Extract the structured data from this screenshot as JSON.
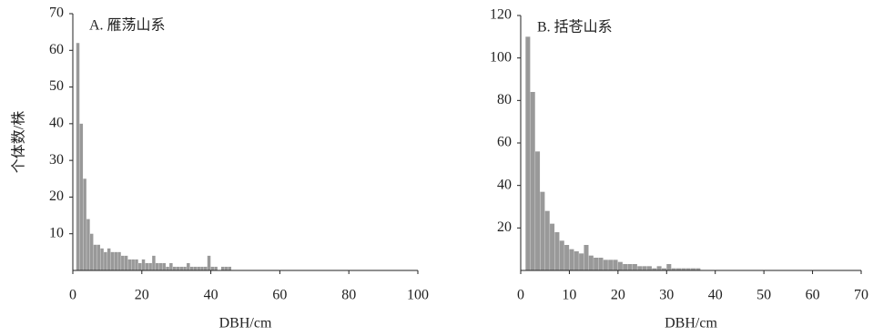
{
  "chart_data": [
    {
      "type": "histogram",
      "title": "A. 雁荡山系",
      "xlabel": "DBH/cm",
      "ylabel": "个体数/株",
      "color": "#999999",
      "bins": [
        1,
        2,
        3,
        4,
        5,
        6,
        7,
        8,
        9,
        10,
        11,
        12,
        13,
        14,
        15,
        16,
        17,
        18,
        19,
        20,
        21,
        22,
        23,
        24,
        25,
        26,
        27,
        28,
        29,
        30,
        31,
        32,
        33,
        34,
        35,
        36,
        37,
        38,
        39,
        40,
        41,
        42,
        43,
        44,
        45,
        46
      ],
      "counts": [
        62,
        40,
        25,
        14,
        10,
        7,
        7,
        6,
        5,
        6,
        5,
        5,
        5,
        4,
        4,
        3,
        3,
        3,
        2,
        3,
        2,
        2,
        4,
        2,
        2,
        2,
        1,
        2,
        1,
        1,
        1,
        1,
        2,
        1,
        1,
        1,
        1,
        1,
        4,
        1,
        1,
        0,
        1,
        1,
        1
      ],
      "xlim": [
        0,
        100
      ],
      "xticks": [
        0,
        20,
        40,
        60,
        80,
        100
      ],
      "ylim": [
        0,
        70
      ],
      "yticks": [
        10,
        20,
        30,
        40,
        50,
        60,
        70
      ]
    },
    {
      "type": "histogram",
      "title": "B. 括苍山系",
      "xlabel": "DBH/cm",
      "color": "#999999",
      "bins": [
        1,
        2,
        3,
        4,
        5,
        6,
        7,
        8,
        9,
        10,
        11,
        12,
        13,
        14,
        15,
        16,
        17,
        18,
        19,
        20,
        21,
        22,
        23,
        24,
        25,
        26,
        27,
        28,
        29,
        30,
        31,
        32,
        33,
        34,
        35,
        36,
        37
      ],
      "counts": [
        110,
        84,
        56,
        37,
        28,
        22,
        18,
        14,
        12,
        10,
        9,
        8,
        12,
        7,
        6,
        6,
        5,
        5,
        5,
        4,
        3,
        3,
        3,
        2,
        2,
        2,
        1,
        2,
        1,
        3,
        1,
        1,
        1,
        1,
        1,
        1
      ],
      "xlim": [
        0,
        70
      ],
      "xticks": [
        0,
        10,
        20,
        30,
        40,
        50,
        60,
        70
      ],
      "ylim": [
        0,
        120
      ],
      "yticks": [
        20,
        40,
        60,
        80,
        100,
        120
      ]
    }
  ]
}
